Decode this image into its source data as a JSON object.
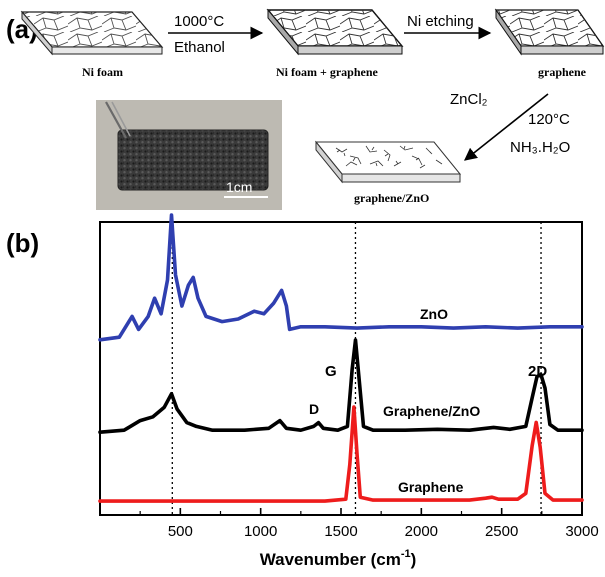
{
  "panel_a": {
    "label": "(a)",
    "foam1_label": "Ni foam",
    "arrow1_top": "1000°C",
    "arrow1_bottom": "Ethanol",
    "foam2_label": "Ni foam + graphene",
    "arrow2_top": "Ni etching",
    "foam3_label": "graphene",
    "arrow3_left": "ZnCl₂",
    "arrow3_right_top": "120°C",
    "arrow3_right_bottom": "NH₃.H₂O",
    "foam4_label": "graphene/ZnO",
    "photo_scale": "1cm"
  },
  "panel_b": {
    "label": "(b)"
  },
  "chart_data": {
    "type": "line",
    "title": "",
    "xlabel": "Wavenumber (cm⁻¹)",
    "ylabel": "",
    "xlim": [
      0,
      3000
    ],
    "xticks": [
      500,
      1000,
      1500,
      2000,
      2500,
      3000
    ],
    "yticks": [],
    "reference_lines_x": [
      450,
      1590,
      2745
    ],
    "series": [
      {
        "name": "ZnO",
        "color": "#2f3fb0",
        "points": [
          [
            0,
            4
          ],
          [
            120,
            6
          ],
          [
            160,
            14
          ],
          [
            200,
            22
          ],
          [
            240,
            12
          ],
          [
            300,
            22
          ],
          [
            340,
            36
          ],
          [
            380,
            24
          ],
          [
            420,
            50
          ],
          [
            445,
            100
          ],
          [
            470,
            54
          ],
          [
            510,
            30
          ],
          [
            550,
            46
          ],
          [
            580,
            52
          ],
          [
            610,
            36
          ],
          [
            660,
            22
          ],
          [
            760,
            18
          ],
          [
            860,
            20
          ],
          [
            960,
            26
          ],
          [
            1020,
            24
          ],
          [
            1080,
            32
          ],
          [
            1130,
            42
          ],
          [
            1160,
            30
          ],
          [
            1180,
            12
          ],
          [
            1250,
            14
          ],
          [
            1400,
            14
          ],
          [
            1600,
            13
          ],
          [
            1800,
            14
          ],
          [
            2000,
            14
          ],
          [
            2200,
            13
          ],
          [
            2400,
            14
          ],
          [
            2600,
            13
          ],
          [
            2800,
            14
          ],
          [
            3000,
            14
          ]
        ]
      },
      {
        "name": "Graphene/ZnO",
        "color": "#000000",
        "points": [
          [
            0,
            4
          ],
          [
            150,
            6
          ],
          [
            250,
            16
          ],
          [
            330,
            20
          ],
          [
            400,
            30
          ],
          [
            445,
            44
          ],
          [
            480,
            28
          ],
          [
            540,
            14
          ],
          [
            600,
            10
          ],
          [
            700,
            6
          ],
          [
            900,
            6
          ],
          [
            1050,
            8
          ],
          [
            1120,
            16
          ],
          [
            1160,
            8
          ],
          [
            1250,
            6
          ],
          [
            1330,
            10
          ],
          [
            1360,
            14
          ],
          [
            1390,
            8
          ],
          [
            1480,
            6
          ],
          [
            1540,
            10
          ],
          [
            1570,
            70
          ],
          [
            1590,
            100
          ],
          [
            1610,
            64
          ],
          [
            1640,
            10
          ],
          [
            1700,
            6
          ],
          [
            1900,
            6
          ],
          [
            2100,
            7
          ],
          [
            2300,
            6
          ],
          [
            2450,
            9
          ],
          [
            2550,
            7
          ],
          [
            2650,
            10
          ],
          [
            2690,
            40
          ],
          [
            2720,
            62
          ],
          [
            2745,
            64
          ],
          [
            2770,
            50
          ],
          [
            2800,
            12
          ],
          [
            2850,
            6
          ],
          [
            2950,
            6
          ],
          [
            3000,
            6
          ]
        ]
      },
      {
        "name": "Graphene",
        "color": "#ee1c1c",
        "points": [
          [
            0,
            2
          ],
          [
            500,
            2
          ],
          [
            1000,
            2
          ],
          [
            1400,
            2
          ],
          [
            1530,
            4
          ],
          [
            1555,
            40
          ],
          [
            1580,
            100
          ],
          [
            1600,
            50
          ],
          [
            1620,
            6
          ],
          [
            1700,
            3
          ],
          [
            2000,
            3
          ],
          [
            2300,
            3
          ],
          [
            2400,
            5
          ],
          [
            2440,
            6
          ],
          [
            2480,
            4
          ],
          [
            2600,
            4
          ],
          [
            2650,
            10
          ],
          [
            2690,
            60
          ],
          [
            2715,
            84
          ],
          [
            2740,
            58
          ],
          [
            2770,
            10
          ],
          [
            2820,
            3
          ],
          [
            3000,
            3
          ]
        ]
      }
    ],
    "peak_labels": {
      "d": "D",
      "g": "G",
      "two_d": "2D"
    }
  }
}
